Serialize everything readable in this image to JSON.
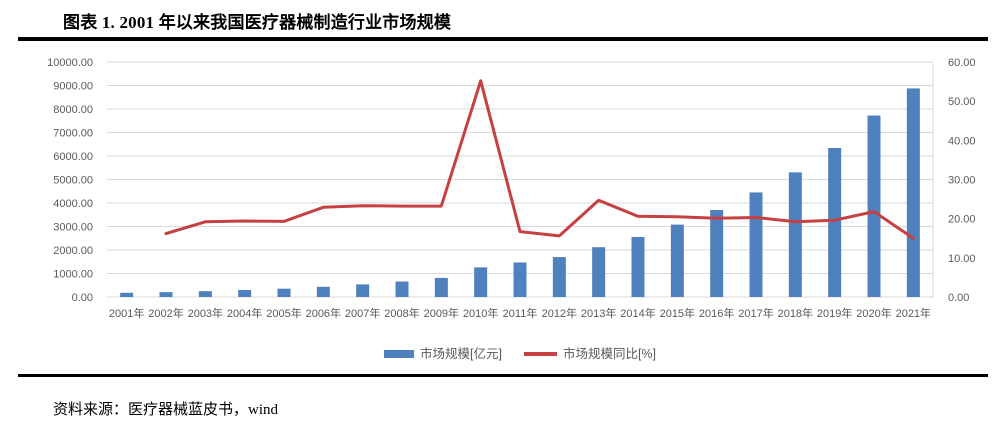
{
  "page": {
    "title": "图表 1. 2001 年以来我国医疗器械制造行业市场规模",
    "source": "资料来源：医疗器械蓝皮书，wind"
  },
  "colors": {
    "bar": "#4E81BD",
    "line": "#C64041",
    "grid": "#D9D9D9",
    "axis_text": "#595959",
    "divider": "#000000"
  },
  "chart_data": {
    "type": "bar",
    "subtype": "combo-bar-line-dual-axis",
    "title": "",
    "categories": [
      "2001年",
      "2002年",
      "2003年",
      "2004年",
      "2005年",
      "2006年",
      "2007年",
      "2008年",
      "2009年",
      "2010年",
      "2011年",
      "2012年",
      "2013年",
      "2014年",
      "2015年",
      "2016年",
      "2017年",
      "2018年",
      "2019年",
      "2020年",
      "2021年"
    ],
    "series": [
      {
        "name": "市场规模[亿元]",
        "type": "bar",
        "axis": "left",
        "color": "#4E81BD",
        "values": [
          179,
          208,
          248,
          296,
          353,
          434,
          535,
          659,
          812,
          1260,
          1470,
          1700,
          2120,
          2556,
          3080,
          3700,
          4450,
          5304,
          6341,
          7721,
          8876
        ]
      },
      {
        "name": "市场规模同比[%]",
        "type": "line",
        "axis": "right",
        "color": "#C64041",
        "values": [
          null,
          16.2,
          19.2,
          19.4,
          19.3,
          22.9,
          23.3,
          23.2,
          23.2,
          55.2,
          16.7,
          15.6,
          24.7,
          20.6,
          20.5,
          20.1,
          20.3,
          19.2,
          19.6,
          21.8,
          15.0
        ]
      }
    ],
    "left_axis": {
      "min": 0,
      "max": 10000,
      "step": 1000,
      "decimals": 2
    },
    "right_axis": {
      "min": 0,
      "max": 60,
      "step": 10,
      "decimals": 2
    },
    "grid": true,
    "legend_position": "bottom"
  }
}
